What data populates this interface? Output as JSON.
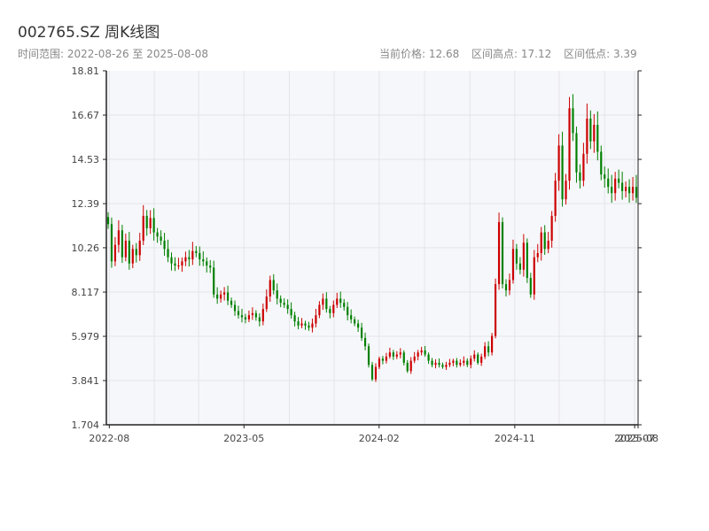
{
  "header": {
    "title": "002765.SZ 周K线图",
    "range_label": "时间范围: 2022-08-26 至 2025-08-08",
    "current_price": "当前价格: 12.68",
    "high": "区间高点: 17.12",
    "low": "区间低点: 3.39"
  },
  "colors": {
    "up": "#cc0000",
    "down": "#008000",
    "plot_bg": "#f6f7fa",
    "grid": "#e3e5ea",
    "axis": "#222222"
  },
  "chart_data": {
    "type": "candlestick",
    "title": "002765.SZ 周K线图",
    "xlabel": "",
    "ylabel": "",
    "ylim": [
      1.704,
      18.81
    ],
    "y_ticks": [
      "1.704",
      "3.841",
      "5.979",
      "8.117",
      "10.26",
      "12.39",
      "14.53",
      "16.67",
      "18.81"
    ],
    "x_ticks": [
      "2022-08",
      "2023-05",
      "2024-02",
      "2024-11",
      "2025-07",
      "2025-08"
    ],
    "x_range": [
      "2022-08-26",
      "2025-08-08"
    ],
    "grid": true,
    "closes": [
      11.4,
      9.6,
      10.4,
      11.1,
      9.8,
      10.6,
      9.5,
      10.2,
      9.9,
      10.6,
      11.8,
      11.2,
      11.7,
      11.0,
      10.8,
      10.6,
      10.2,
      9.8,
      9.5,
      9.4,
      9.4,
      9.6,
      9.8,
      9.7,
      10.1,
      10.0,
      9.7,
      9.6,
      9.4,
      9.3,
      8.0,
      7.8,
      8.0,
      8.1,
      7.7,
      7.5,
      7.2,
      7.0,
      6.9,
      6.8,
      7.0,
      7.1,
      6.9,
      6.7,
      7.3,
      7.9,
      8.7,
      8.2,
      7.8,
      7.6,
      7.5,
      7.3,
      7.0,
      6.7,
      6.5,
      6.6,
      6.5,
      6.4,
      6.6,
      7.0,
      7.5,
      7.8,
      7.3,
      7.1,
      7.5,
      7.8,
      7.6,
      7.4,
      7.0,
      6.8,
      6.6,
      6.4,
      5.9,
      5.5,
      4.6,
      3.9,
      4.5,
      4.9,
      4.8,
      5.0,
      5.2,
      5.0,
      5.1,
      5.2,
      4.7,
      4.3,
      4.8,
      5.0,
      5.2,
      5.3,
      5.1,
      4.8,
      4.6,
      4.7,
      4.6,
      4.5,
      4.6,
      4.7,
      4.8,
      4.6,
      4.7,
      4.8,
      4.6,
      4.9,
      5.1,
      4.7,
      5.0,
      5.5,
      5.2,
      6.0,
      8.5,
      11.5,
      8.5,
      8.2,
      8.7,
      10.2,
      9.5,
      9.2,
      10.5,
      8.8,
      8.0,
      9.8,
      10.0,
      11.0,
      10.2,
      10.6,
      11.8,
      13.5,
      15.2,
      12.6,
      13.5,
      17.0,
      15.8,
      13.9,
      13.5,
      14.8,
      16.5,
      15.4,
      16.2,
      14.9,
      13.8,
      13.6,
      13.2,
      12.9,
      13.6,
      13.4,
      13.0,
      13.2,
      12.9,
      13.2,
      12.68
    ],
    "ohlc_note": "open = previous close; high/low derived with wick margin in script",
    "period": "weekly",
    "current_price": 12.68,
    "range_high": 17.12,
    "range_low": 3.39,
    "up_color": "#cc0000",
    "down_color": "#008000"
  }
}
